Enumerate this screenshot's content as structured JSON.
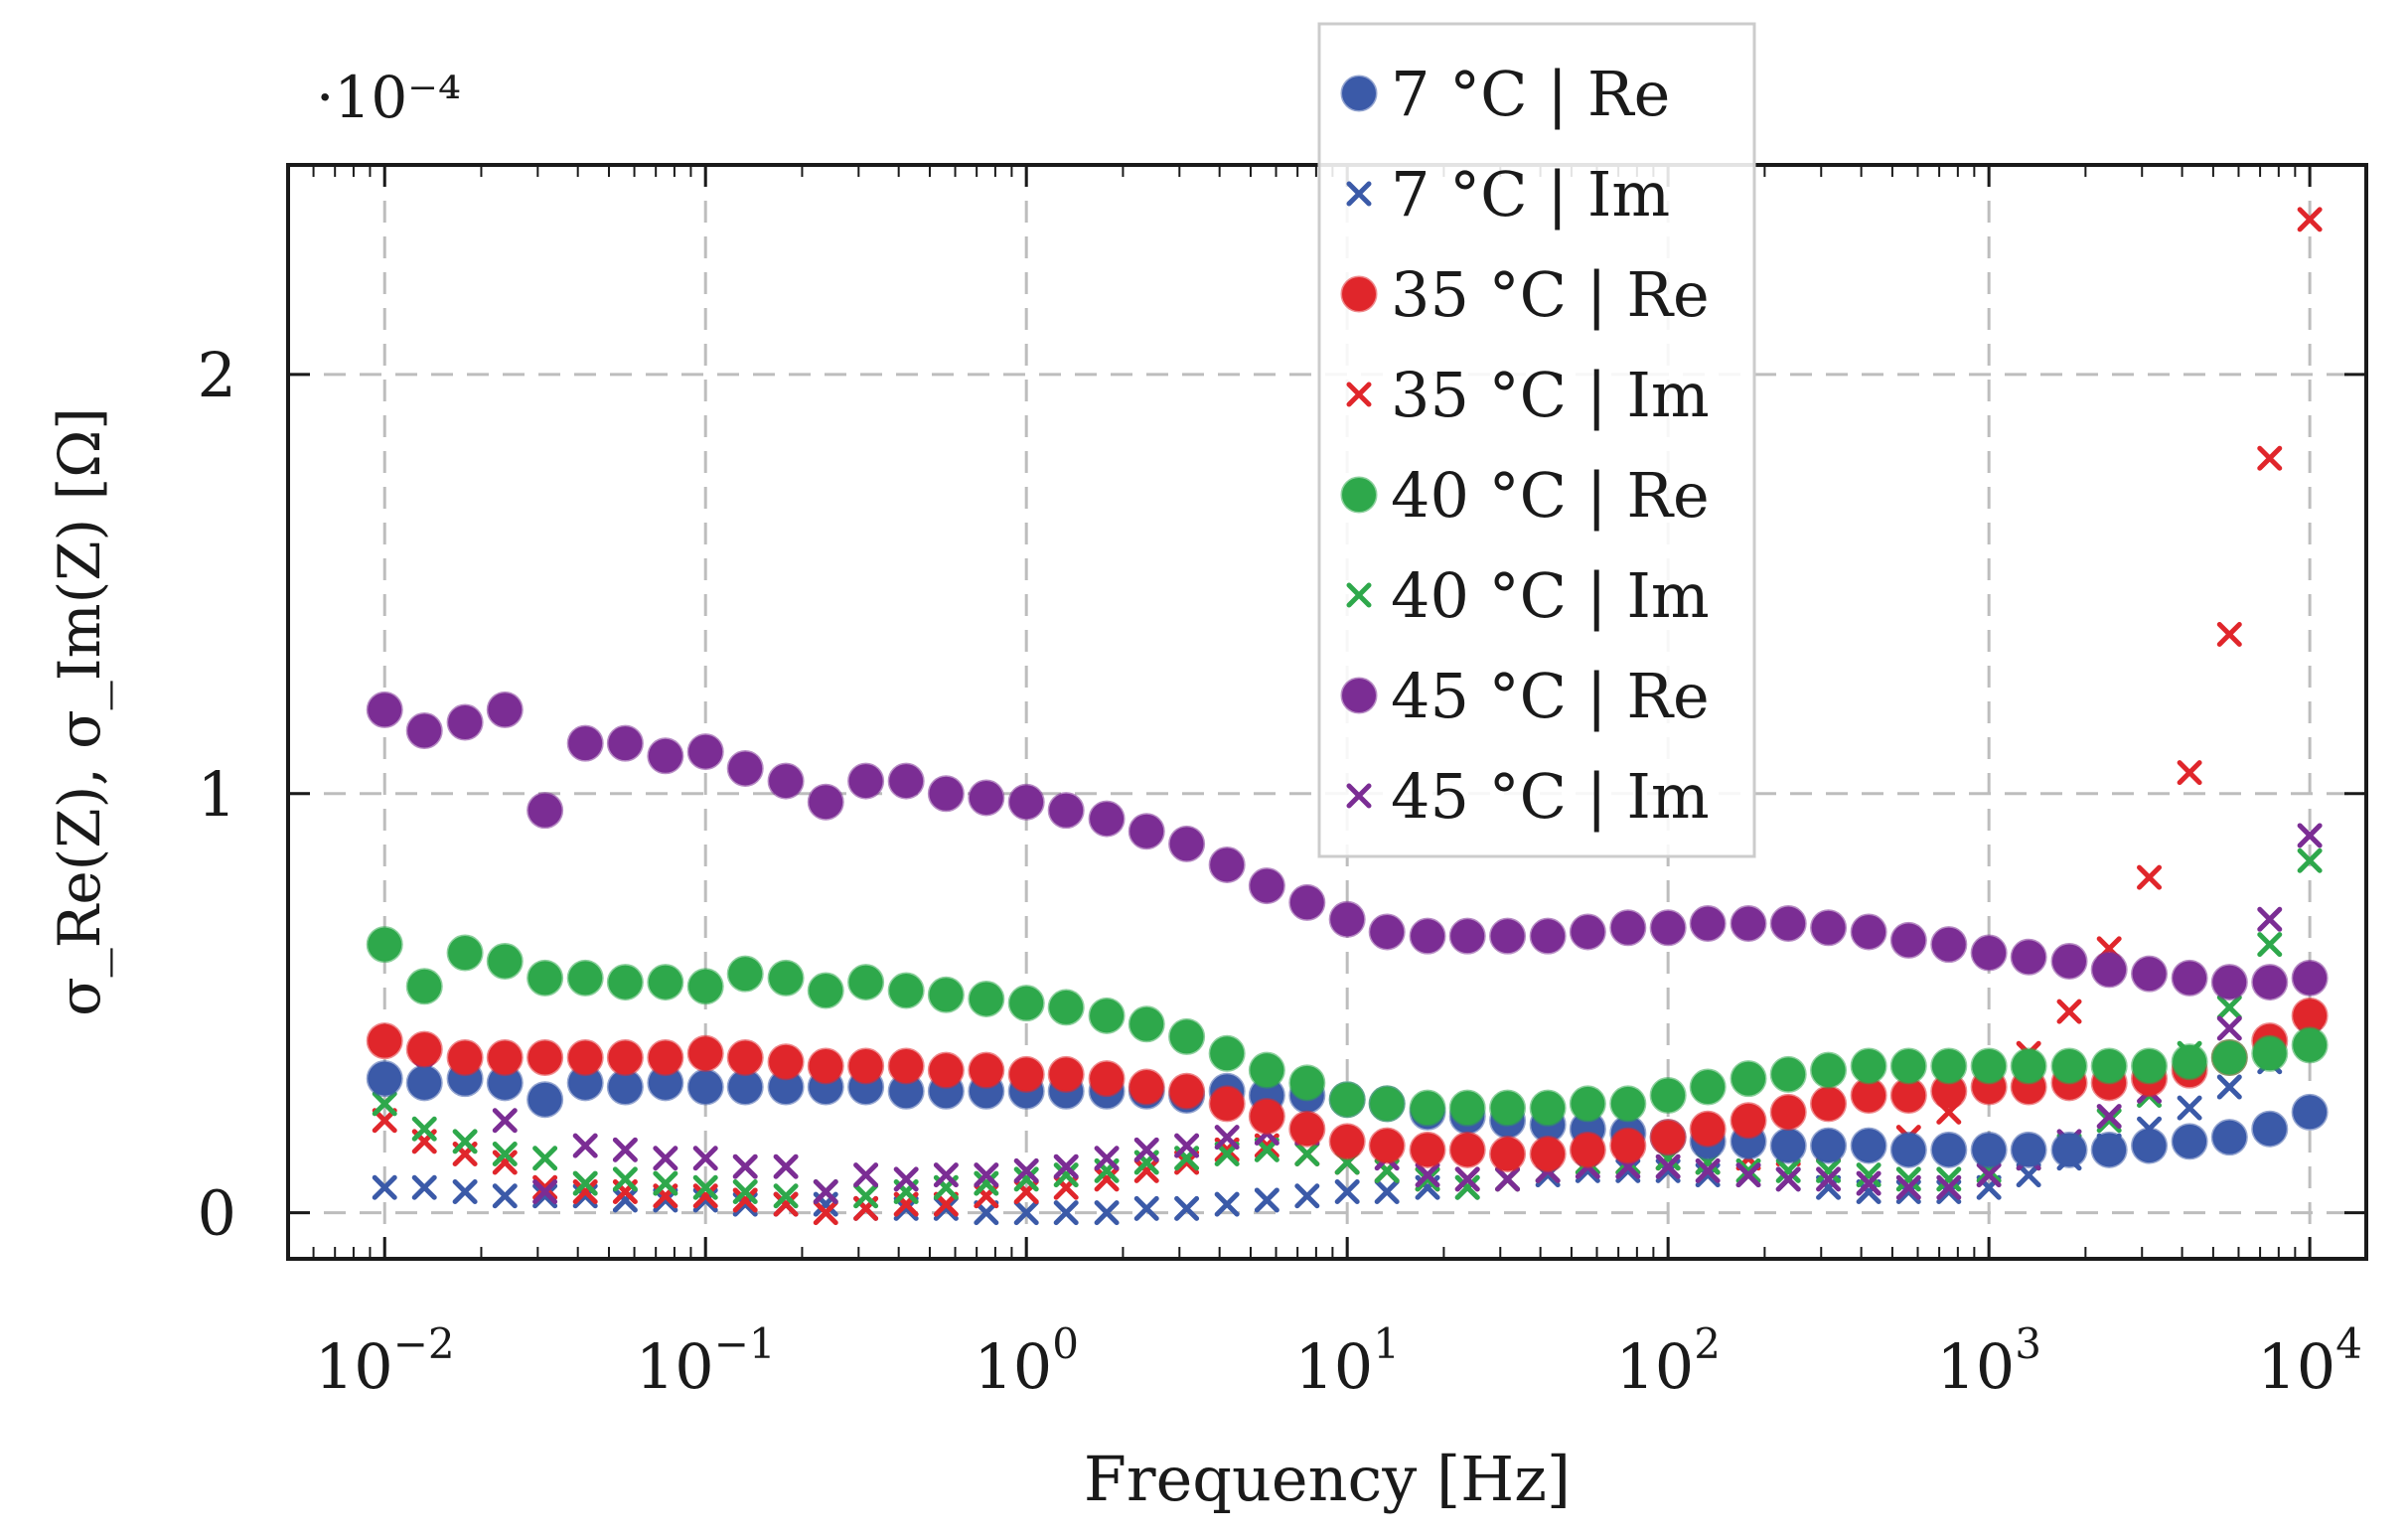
{
  "chart_data": {
    "type": "scatter",
    "title": "",
    "xlabel": "Frequency [Hz]",
    "ylabel": "σ_Re(Z), σ_Im(Z) [Ω]",
    "y_scale_note": "·10⁻⁴",
    "x_scale": "log",
    "xlim": [
      0.005,
      15000
    ],
    "ylim": [
      -0.11,
      2.5
    ],
    "grid": true,
    "legend_position": "top-center",
    "x_ticks": [
      0.01,
      0.1,
      1,
      10,
      100,
      1000,
      10000
    ],
    "x_tick_labels": [
      {
        "base": "10",
        "exp": "−2"
      },
      {
        "base": "10",
        "exp": "−1"
      },
      {
        "base": "10",
        "exp": "0"
      },
      {
        "base": "10",
        "exp": "1"
      },
      {
        "base": "10",
        "exp": "2"
      },
      {
        "base": "10",
        "exp": "3"
      },
      {
        "base": "10",
        "exp": "4"
      }
    ],
    "y_ticks": [
      0,
      1,
      2
    ],
    "y_tick_labels": [
      "0",
      "1",
      "2"
    ],
    "x": [
      0.01,
      0.0133,
      0.0178,
      0.0237,
      0.0316,
      0.0422,
      0.0562,
      0.075,
      0.1,
      0.133,
      0.178,
      0.237,
      0.316,
      0.422,
      0.562,
      0.75,
      1,
      1.33,
      1.78,
      2.37,
      3.16,
      4.22,
      5.62,
      7.5,
      10,
      13.3,
      17.8,
      23.7,
      31.6,
      42.2,
      56.2,
      75,
      100,
      133,
      178,
      237,
      316,
      422,
      562,
      750,
      1000,
      1330,
      1780,
      2370,
      3160,
      4220,
      5620,
      7500,
      10000
    ],
    "series": [
      {
        "name": "7 °C | Re",
        "marker": "circle",
        "color": "#3b5aa8",
        "values": [
          0.32,
          0.31,
          0.32,
          0.31,
          0.27,
          0.31,
          0.3,
          0.31,
          0.3,
          0.3,
          0.3,
          0.3,
          0.3,
          0.29,
          0.29,
          0.29,
          0.29,
          0.29,
          0.29,
          0.29,
          0.28,
          0.29,
          0.28,
          0.28,
          0.27,
          0.26,
          0.24,
          0.23,
          0.22,
          0.21,
          0.2,
          0.19,
          0.18,
          0.17,
          0.17,
          0.16,
          0.16,
          0.16,
          0.15,
          0.15,
          0.15,
          0.15,
          0.15,
          0.15,
          0.16,
          0.17,
          0.18,
          0.2,
          0.24
        ]
      },
      {
        "name": "7 °C | Im",
        "marker": "x",
        "color": "#3b5aa8",
        "values": [
          0.06,
          0.06,
          0.05,
          0.04,
          0.04,
          0.04,
          0.03,
          0.03,
          0.03,
          0.02,
          0.02,
          0.02,
          0.01,
          0.01,
          0.01,
          0.0,
          0.0,
          0.0,
          0.0,
          0.01,
          0.01,
          0.02,
          0.03,
          0.04,
          0.05,
          0.05,
          0.06,
          0.06,
          0.08,
          0.09,
          0.1,
          0.1,
          0.1,
          0.09,
          0.09,
          0.08,
          0.06,
          0.05,
          0.05,
          0.05,
          0.06,
          0.09,
          0.13,
          0.16,
          0.2,
          0.25,
          0.3,
          0.36,
          0.42
        ]
      },
      {
        "name": "35 °C | Re",
        "marker": "circle",
        "color": "#e0262b",
        "values": [
          0.41,
          0.39,
          0.37,
          0.37,
          0.37,
          0.37,
          0.37,
          0.37,
          0.38,
          0.37,
          0.36,
          0.35,
          0.35,
          0.35,
          0.34,
          0.34,
          0.33,
          0.33,
          0.32,
          0.3,
          0.29,
          0.26,
          0.23,
          0.2,
          0.17,
          0.16,
          0.15,
          0.15,
          0.14,
          0.14,
          0.15,
          0.16,
          0.18,
          0.2,
          0.22,
          0.24,
          0.26,
          0.28,
          0.28,
          0.29,
          0.3,
          0.3,
          0.31,
          0.31,
          0.32,
          0.34,
          0.37,
          0.41,
          0.47
        ]
      },
      {
        "name": "35 °C | Im",
        "marker": "x",
        "color": "#e0262b",
        "values": [
          0.22,
          0.17,
          0.14,
          0.12,
          0.06,
          0.05,
          0.05,
          0.04,
          0.04,
          0.03,
          0.02,
          0.0,
          0.01,
          0.02,
          0.02,
          0.04,
          0.05,
          0.06,
          0.08,
          0.1,
          0.12,
          0.15,
          0.16,
          0.14,
          0.12,
          0.1,
          0.08,
          0.08,
          0.08,
          0.1,
          0.12,
          0.12,
          0.13,
          0.12,
          0.13,
          0.14,
          0.15,
          0.16,
          0.18,
          0.24,
          0.3,
          0.38,
          0.48,
          0.63,
          0.8,
          1.05,
          1.38,
          1.8,
          2.37
        ]
      },
      {
        "name": "40 °C | Re",
        "marker": "circle",
        "color": "#2ea84b",
        "values": [
          0.64,
          0.54,
          0.62,
          0.6,
          0.56,
          0.56,
          0.55,
          0.55,
          0.54,
          0.57,
          0.56,
          0.53,
          0.55,
          0.53,
          0.52,
          0.51,
          0.5,
          0.49,
          0.47,
          0.45,
          0.42,
          0.38,
          0.34,
          0.31,
          0.27,
          0.26,
          0.25,
          0.25,
          0.25,
          0.25,
          0.26,
          0.26,
          0.28,
          0.3,
          0.32,
          0.33,
          0.34,
          0.35,
          0.35,
          0.35,
          0.35,
          0.35,
          0.35,
          0.35,
          0.35,
          0.36,
          0.37,
          0.38,
          0.4
        ]
      },
      {
        "name": "40 °C | Im",
        "marker": "x",
        "color": "#2ea84b",
        "values": [
          0.26,
          0.2,
          0.17,
          0.14,
          0.13,
          0.07,
          0.08,
          0.07,
          0.06,
          0.05,
          0.04,
          0.05,
          0.04,
          0.05,
          0.06,
          0.07,
          0.08,
          0.09,
          0.1,
          0.12,
          0.13,
          0.14,
          0.15,
          0.14,
          0.12,
          0.1,
          0.08,
          0.06,
          0.08,
          0.1,
          0.12,
          0.12,
          0.13,
          0.12,
          0.1,
          0.1,
          0.1,
          0.09,
          0.08,
          0.08,
          0.1,
          0.13,
          0.16,
          0.22,
          0.28,
          0.38,
          0.49,
          0.64,
          0.84
        ]
      },
      {
        "name": "45 °C | Re",
        "marker": "circle",
        "color": "#7b2d94",
        "values": [
          1.2,
          1.15,
          1.17,
          1.2,
          0.96,
          1.12,
          1.12,
          1.09,
          1.1,
          1.06,
          1.03,
          0.98,
          1.03,
          1.03,
          1.0,
          0.99,
          0.98,
          0.96,
          0.94,
          0.91,
          0.88,
          0.83,
          0.78,
          0.74,
          0.7,
          0.67,
          0.66,
          0.66,
          0.66,
          0.66,
          0.67,
          0.68,
          0.68,
          0.69,
          0.69,
          0.69,
          0.68,
          0.67,
          0.65,
          0.64,
          0.62,
          0.61,
          0.6,
          0.58,
          0.57,
          0.56,
          0.55,
          0.55,
          0.56
        ]
      },
      {
        "name": "45 °C | Im",
        "marker": "x",
        "color": "#7b2d94",
        "values": [
          0.41,
          0.34,
          0.35,
          0.22,
          0.05,
          0.16,
          0.15,
          0.13,
          0.13,
          0.11,
          0.11,
          0.05,
          0.09,
          0.08,
          0.09,
          0.09,
          0.1,
          0.11,
          0.13,
          0.15,
          0.16,
          0.18,
          0.19,
          0.19,
          0.17,
          0.13,
          0.09,
          0.08,
          0.08,
          0.1,
          0.11,
          0.11,
          0.11,
          0.1,
          0.09,
          0.08,
          0.08,
          0.07,
          0.06,
          0.06,
          0.09,
          0.13,
          0.17,
          0.23,
          0.29,
          0.35,
          0.44,
          0.7,
          0.9
        ]
      }
    ]
  }
}
